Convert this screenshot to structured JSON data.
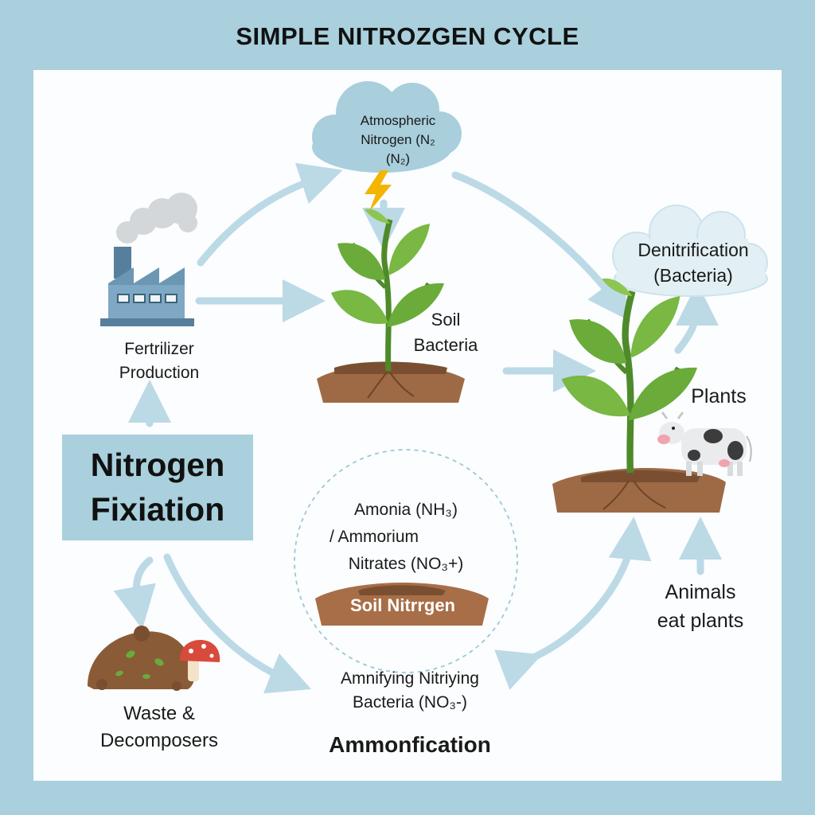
{
  "title": "SIMPLE NITROZGEN CYCLE",
  "nodes": {
    "atmospheric": {
      "line1": "Atmospheric",
      "line2": "Nitrogen (N₂",
      "line3": "(N₂)"
    },
    "denitrification": {
      "line1": "Denitrification",
      "line2": "(Bacteria)"
    },
    "fertilizer": {
      "line1": "Fertrilizer",
      "line2": "Production"
    },
    "soil_bacteria": {
      "line1": "Soil",
      "line2": "Bacteria"
    },
    "plants": {
      "label": "Plants"
    },
    "fixation": {
      "line1": "Nitrogen",
      "line2": "Fixiation"
    },
    "soil_nitrogen": {
      "line1": "Amonia (NH₃)",
      "line2": "/ Ammorium",
      "line3": "Nitrates (NO₃+)",
      "mound": "Soil Nitrrgen"
    },
    "animals": {
      "line1": "Animals",
      "line2": "eat plants"
    },
    "waste": {
      "line1": "Waste &",
      "line2": "Decomposers"
    },
    "ammonifying": {
      "line1": "Amnifying Nitriying",
      "line2": "Bacteria (NO₃-)"
    },
    "ammonification": {
      "label": "Ammonfication"
    }
  },
  "colors": {
    "background": "#a9d0dc",
    "panel": "#fbfdfe",
    "arrow": "#bcd9e6",
    "cloud": "#a9cedc",
    "leaf": "#6aab3a",
    "soil": "#9e6a45",
    "lightning": "#f3b500"
  },
  "icons": [
    "cloud-icon",
    "lightning-icon",
    "factory-icon",
    "plant-icon",
    "cow-icon",
    "compost-icon",
    "mushroom-icon"
  ]
}
